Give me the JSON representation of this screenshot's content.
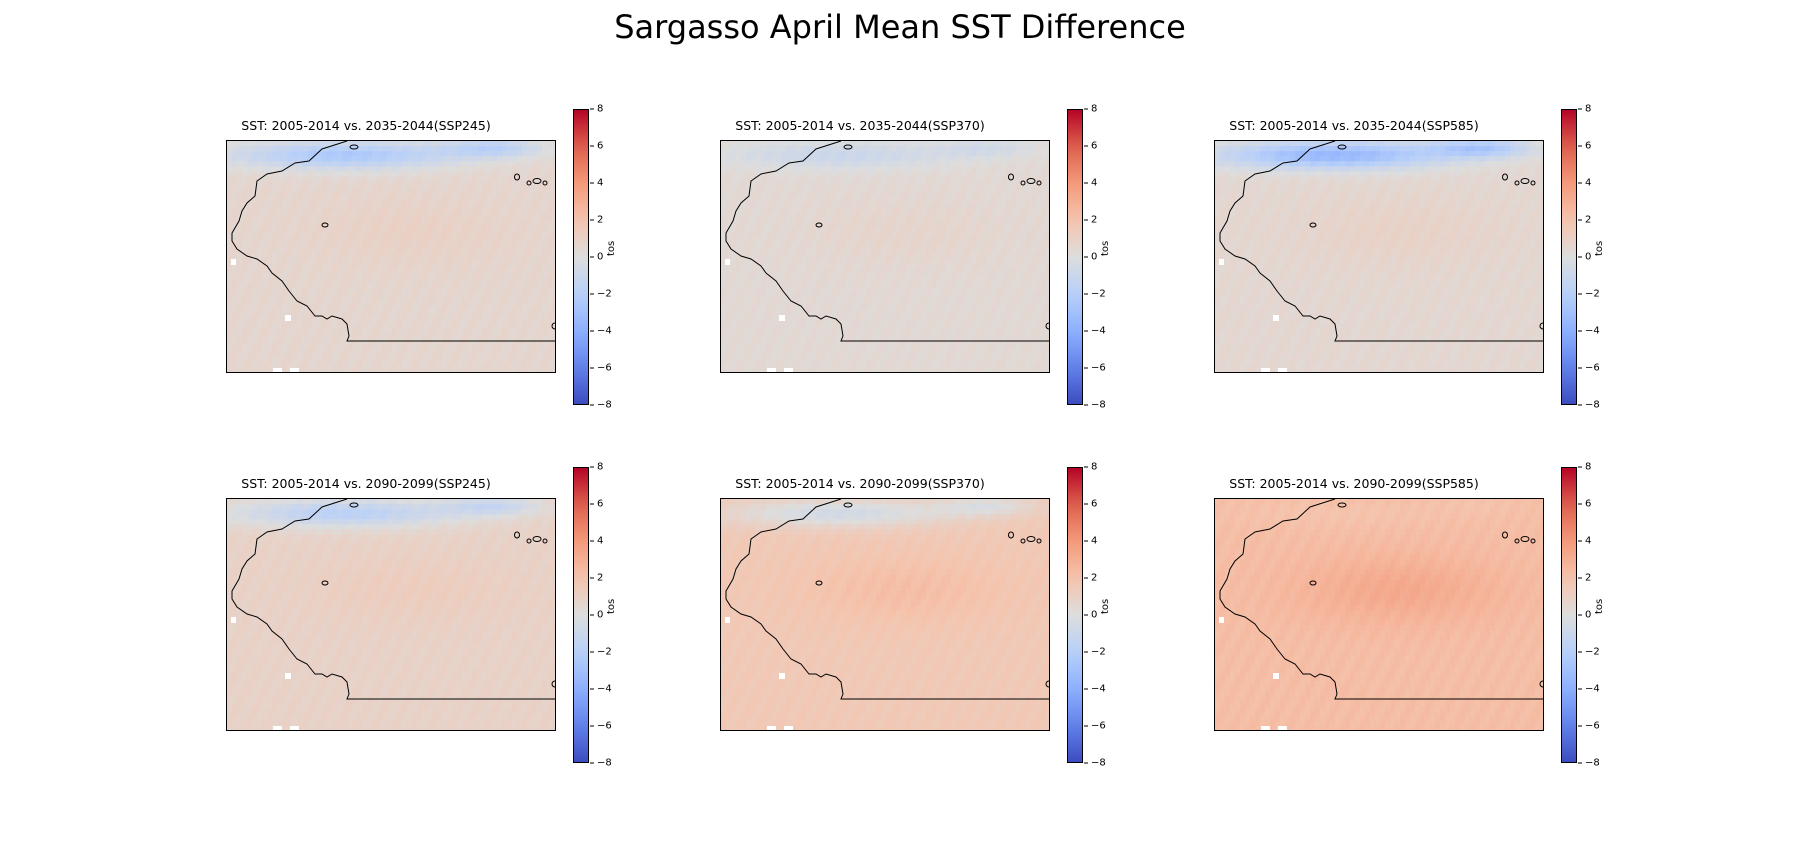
{
  "figure": {
    "title": "Sargasso April Mean SST Difference"
  },
  "chart_data": [
    {
      "type": "heatmap",
      "title": "SST: 2005-2014 vs. 2035-2044(SSP245)",
      "colorbar_label": "tos",
      "colorbar_ticks": [
        "8",
        "6",
        "4",
        "2",
        "0",
        "−2",
        "−4",
        "−6",
        "−8"
      ],
      "vmin": -8,
      "vmax": 8,
      "colormap": "coolwarm",
      "base_anomaly": 0.6,
      "north_anomaly": -2.5,
      "center_anomaly": 1.0
    },
    {
      "type": "heatmap",
      "title": "SST: 2005-2014 vs. 2035-2044(SSP370)",
      "colorbar_label": "tos",
      "colorbar_ticks": [
        "8",
        "6",
        "4",
        "2",
        "0",
        "−2",
        "−4",
        "−6",
        "−8"
      ],
      "vmin": -8,
      "vmax": 8,
      "colormap": "coolwarm",
      "base_anomaly": 0.4,
      "north_anomaly": -1.0,
      "center_anomaly": 0.7
    },
    {
      "type": "heatmap",
      "title": "SST: 2005-2014 vs. 2035-2044(SSP585)",
      "colorbar_label": "tos",
      "colorbar_ticks": [
        "8",
        "6",
        "4",
        "2",
        "0",
        "−2",
        "−4",
        "−6",
        "−8"
      ],
      "vmin": -8,
      "vmax": 8,
      "colormap": "coolwarm",
      "base_anomaly": 0.5,
      "north_anomaly": -3.5,
      "center_anomaly": 0.9
    },
    {
      "type": "heatmap",
      "title": "SST: 2005-2014 vs. 2090-2099(SSP245)",
      "colorbar_label": "tos",
      "colorbar_ticks": [
        "8",
        "6",
        "4",
        "2",
        "0",
        "−2",
        "−4",
        "−6",
        "−8"
      ],
      "vmin": -8,
      "vmax": 8,
      "colormap": "coolwarm",
      "base_anomaly": 0.9,
      "north_anomaly": -1.8,
      "center_anomaly": 1.3
    },
    {
      "type": "heatmap",
      "title": "SST: 2005-2014 vs. 2090-2099(SSP370)",
      "colorbar_label": "tos",
      "colorbar_ticks": [
        "8",
        "6",
        "4",
        "2",
        "0",
        "−2",
        "−4",
        "−6",
        "−8"
      ],
      "vmin": -8,
      "vmax": 8,
      "colormap": "coolwarm",
      "base_anomaly": 1.6,
      "north_anomaly": -0.6,
      "center_anomaly": 2.3
    },
    {
      "type": "heatmap",
      "title": "SST: 2005-2014 vs. 2090-2099(SSP585)",
      "colorbar_label": "tos",
      "colorbar_ticks": [
        "8",
        "6",
        "4",
        "2",
        "0",
        "−2",
        "−4",
        "−6",
        "−8"
      ],
      "vmin": -8,
      "vmax": 8,
      "colormap": "coolwarm",
      "base_anomaly": 2.3,
      "north_anomaly": 2.0,
      "center_anomaly": 3.3
    }
  ]
}
